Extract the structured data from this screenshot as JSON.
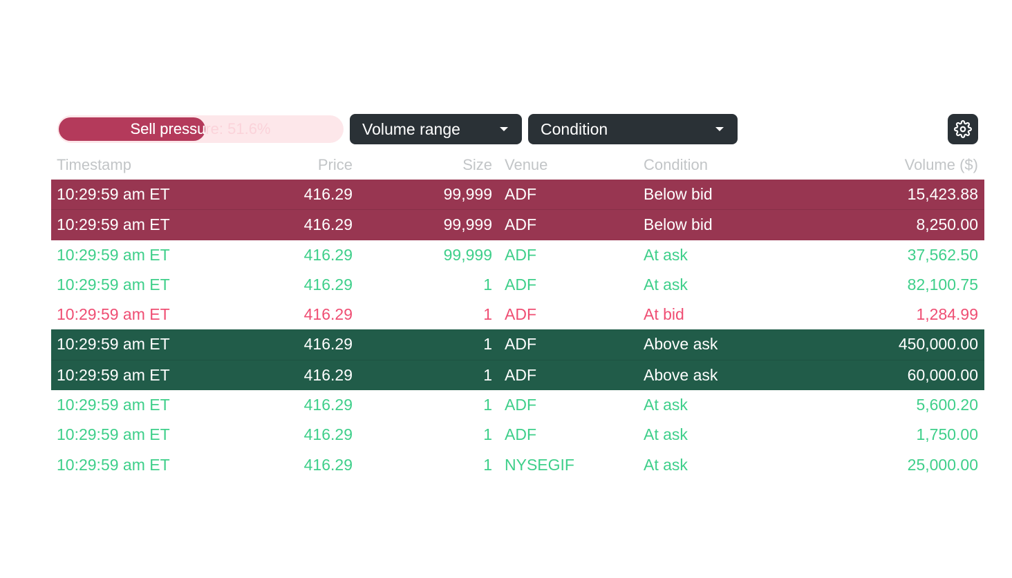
{
  "toolbar": {
    "sell_pressure_label": "Sell pressure: 51.6%",
    "sell_pressure_value": 51.6,
    "volume_range_label": "Volume range",
    "condition_label": "Condition"
  },
  "columns": [
    "Timestamp",
    "Price",
    "Size",
    "Venue",
    "Condition",
    "Volume ($)"
  ],
  "colors": {
    "sell_bar": "#b43a5b",
    "sell_track": "#fde7ea",
    "dark_red_row": "#983651",
    "dark_green_row": "#215c49",
    "green_text": "#3ecf8a",
    "red_text": "#ef4e73",
    "control_bg": "#2a3136"
  },
  "rows": [
    {
      "timestamp": "10:29:59 am ET",
      "price": "416.29",
      "size": "99,999",
      "venue": "ADF",
      "condition": "Below bid",
      "volume": "15,423.88",
      "style": "bg-red"
    },
    {
      "timestamp": "10:29:59 am ET",
      "price": "416.29",
      "size": "99,999",
      "venue": "ADF",
      "condition": "Below bid",
      "volume": "8,250.00",
      "style": "bg-red"
    },
    {
      "timestamp": "10:29:59 am ET",
      "price": "416.29",
      "size": "99,999",
      "venue": "ADF",
      "condition": "At ask",
      "volume": "37,562.50",
      "style": "txt-green"
    },
    {
      "timestamp": "10:29:59 am ET",
      "price": "416.29",
      "size": "1",
      "venue": "ADF",
      "condition": "At ask",
      "volume": "82,100.75",
      "style": "txt-green"
    },
    {
      "timestamp": "10:29:59 am ET",
      "price": "416.29",
      "size": "1",
      "venue": "ADF",
      "condition": "At bid",
      "volume": "1,284.99",
      "style": "txt-red"
    },
    {
      "timestamp": "10:29:59 am ET",
      "price": "416.29",
      "size": "1",
      "venue": "ADF",
      "condition": "Above ask",
      "volume": "450,000.00",
      "style": "bg-green"
    },
    {
      "timestamp": "10:29:59 am ET",
      "price": "416.29",
      "size": "1",
      "venue": "ADF",
      "condition": "Above ask",
      "volume": "60,000.00",
      "style": "bg-green"
    },
    {
      "timestamp": "10:29:59 am ET",
      "price": "416.29",
      "size": "1",
      "venue": "ADF",
      "condition": "At ask",
      "volume": "5,600.20",
      "style": "txt-green"
    },
    {
      "timestamp": "10:29:59 am ET",
      "price": "416.29",
      "size": "1",
      "venue": "ADF",
      "condition": "At ask",
      "volume": "1,750.00",
      "style": "txt-green"
    },
    {
      "timestamp": "10:29:59 am ET",
      "price": "416.29",
      "size": "1",
      "venue": "NYSEGIF",
      "condition": "At ask",
      "volume": "25,000.00",
      "style": "txt-green"
    }
  ]
}
